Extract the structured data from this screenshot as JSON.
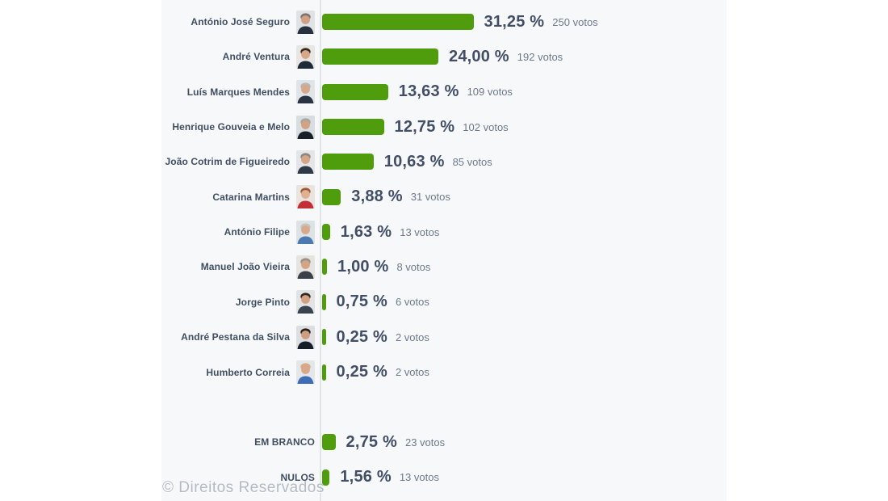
{
  "watermark": "© Direitos Reservados",
  "chart_data": {
    "type": "bar",
    "orientation": "horizontal",
    "title": "",
    "xlabel": "",
    "ylabel": "",
    "value_unit": "%",
    "grid": false,
    "legend": "none",
    "bar_color": "#4f9d0d",
    "axis_line_color": "#e0e4e9",
    "band_background": "#f7f8fa",
    "percent_text_color": "#414e66",
    "votes_text_color": "#6b7a8c",
    "label_text_color": "#3f4e63",
    "rows": [
      {
        "section": "candidate",
        "label": "António José Seguro",
        "percent": 31.25,
        "percent_label": "31,25 %",
        "votes": 250,
        "votes_label": "250 votos",
        "avatar": {
          "bg": "#dfe3e6",
          "hair": "#7d746b",
          "skin": "#d2a183",
          "shirt": "#27313f"
        }
      },
      {
        "section": "candidate",
        "label": "André Ventura",
        "percent": 24.0,
        "percent_label": "24,00 %",
        "votes": 192,
        "votes_label": "192 votos",
        "avatar": {
          "bg": "#e8e6e2",
          "hair": "#33291f",
          "skin": "#d8a788",
          "shirt": "#1f2a38"
        }
      },
      {
        "section": "candidate",
        "label": "Luís Marques Mendes",
        "percent": 13.63,
        "percent_label": "13,63 %",
        "votes": 109,
        "votes_label": "109 votos",
        "avatar": {
          "bg": "#dfe4e8",
          "hair": "#b9b4ad",
          "skin": "#d8a88a",
          "shirt": "#2b3342"
        }
      },
      {
        "section": "candidate",
        "label": "Henrique Gouveia e Melo",
        "percent": 12.75,
        "percent_label": "12,75 %",
        "votes": 102,
        "votes_label": "102 votos",
        "avatar": {
          "bg": "#d8dde2",
          "hair": "#a8a49e",
          "skin": "#d3a284",
          "shirt": "#181f29"
        }
      },
      {
        "section": "candidate",
        "label": "João Cotrim de Figueiredo",
        "percent": 10.63,
        "percent_label": "10,63 %",
        "votes": 85,
        "votes_label": "85 votos",
        "avatar": {
          "bg": "#e3e5e8",
          "hair": "#8c8680",
          "skin": "#d6a586",
          "shirt": "#2e3846"
        }
      },
      {
        "section": "candidate",
        "label": "Catarina Martins",
        "percent": 3.88,
        "percent_label": "3,88 %",
        "votes": 31,
        "votes_label": "31 votos",
        "avatar": {
          "bg": "#e9e4de",
          "hair": "#9c5a38",
          "skin": "#e0b093",
          "shirt": "#c22f36"
        }
      },
      {
        "section": "candidate",
        "label": "António Filipe",
        "percent": 1.63,
        "percent_label": "1,63 %",
        "votes": 13,
        "votes_label": "13 votos",
        "avatar": {
          "bg": "#dde2e7",
          "hair": "#c8c3ba",
          "skin": "#d9a98b",
          "shirt": "#4a7ab0"
        }
      },
      {
        "section": "candidate",
        "label": "Manuel João Vieira",
        "percent": 1.0,
        "percent_label": "1,00 %",
        "votes": 8,
        "votes_label": "8 votos",
        "avatar": {
          "bg": "#e6e4e0",
          "hair": "#97918a",
          "skin": "#d5a485",
          "shirt": "#3a4049"
        }
      },
      {
        "section": "candidate",
        "label": "Jorge Pinto",
        "percent": 0.75,
        "percent_label": "0,75 %",
        "votes": 6,
        "votes_label": "6 votos",
        "avatar": {
          "bg": "#e2e3e5",
          "hair": "#2e2620",
          "skin": "#d3a182",
          "shirt": "#39434f"
        }
      },
      {
        "section": "candidate",
        "label": "André Pestana da Silva",
        "percent": 0.25,
        "percent_label": "0,25 %",
        "votes": 2,
        "votes_label": "2 votos",
        "avatar": {
          "bg": "#dcdee1",
          "hair": "#241f1a",
          "skin": "#cf9e80",
          "shirt": "#161d26"
        }
      },
      {
        "section": "candidate",
        "label": "Humberto Correia",
        "percent": 0.25,
        "percent_label": "0,25 %",
        "votes": 2,
        "votes_label": "2 votos",
        "avatar": {
          "bg": "#e4e7ea",
          "hair": "#d9a88a",
          "skin": "#d9a88a",
          "shirt": "#3e6db8"
        }
      },
      {
        "section": "special",
        "label": "EM BRANCO",
        "percent": 2.75,
        "percent_label": "2,75 %",
        "votes": 23,
        "votes_label": "23 votos",
        "avatar": null
      },
      {
        "section": "special",
        "label": "NULOS",
        "percent": 1.56,
        "percent_label": "1,56 %",
        "votes": 13,
        "votes_label": "13 votos",
        "avatar": null
      }
    ]
  }
}
